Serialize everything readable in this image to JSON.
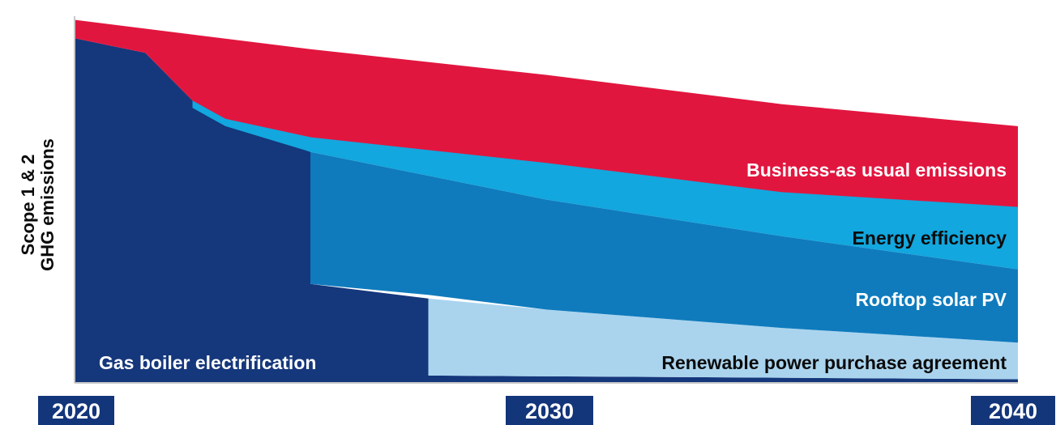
{
  "chart_data": {
    "type": "area",
    "ylabel_lines": [
      "Scope 1 & 2",
      "GHG emissions"
    ],
    "x_ticks": [
      "2020",
      "2030",
      "2040"
    ],
    "xlim": [
      2020,
      2040
    ],
    "ylim": [
      0,
      100
    ],
    "colors": {
      "axis": "#c8c8c8",
      "tick_badge": "#13357a",
      "label_dark": "#0b0b0b",
      "label_light": "#ffffff"
    },
    "series": [
      {
        "name": "Business-as usual emissions",
        "color": "#e1163f",
        "label_color": "#ffffff",
        "upper": [
          [
            2020,
            99
          ],
          [
            2025,
            91
          ],
          [
            2030,
            84
          ],
          [
            2035,
            76
          ],
          [
            2040,
            70
          ]
        ],
        "lower": [
          [
            2020,
            94
          ],
          [
            2021.5,
            90
          ],
          [
            2022.5,
            77
          ],
          [
            2023.2,
            72
          ],
          [
            2025,
            67
          ],
          [
            2030,
            60
          ],
          [
            2035,
            52
          ],
          [
            2040,
            48
          ]
        ]
      },
      {
        "name": "Energy efficiency",
        "color": "#12a7de",
        "label_color": "#0b0b0b",
        "upper": [
          [
            2022.5,
            84
          ],
          [
            2023.2,
            77
          ],
          [
            2025,
            74
          ],
          [
            2030,
            67
          ],
          [
            2035,
            57
          ],
          [
            2040,
            48
          ]
        ],
        "lower": [
          [
            2022.5,
            75
          ],
          [
            2023.2,
            70
          ],
          [
            2025,
            63
          ],
          [
            2030,
            50
          ],
          [
            2035,
            40
          ],
          [
            2040,
            31
          ]
        ]
      },
      {
        "name": "Rooftop solar PV",
        "color": "#0f7bbd",
        "label_color": "#ffffff",
        "upper": [
          [
            2025,
            63
          ],
          [
            2030,
            50
          ],
          [
            2035,
            40
          ],
          [
            2040,
            31
          ]
        ],
        "lower": [
          [
            2025,
            27
          ],
          [
            2027.5,
            24
          ],
          [
            2030,
            20
          ],
          [
            2035,
            15
          ],
          [
            2040,
            11
          ]
        ]
      },
      {
        "name": "Renewable power purchase agreement",
        "color": "#aad4ee",
        "label_color": "#0b0b0b",
        "upper": [
          [
            2027.5,
            23
          ],
          [
            2030,
            20
          ],
          [
            2035,
            15
          ],
          [
            2040,
            11
          ]
        ],
        "lower": [
          [
            2027.5,
            2
          ],
          [
            2040,
            1
          ]
        ]
      },
      {
        "name": "Gas boiler electrification",
        "color": "#15377b",
        "label_color": "#ffffff",
        "upper": [
          [
            2020,
            94
          ],
          [
            2021.5,
            90
          ],
          [
            2022.5,
            77
          ],
          [
            2023.2,
            72
          ],
          [
            2025,
            63
          ],
          [
            2025,
            27
          ],
          [
            2027.5,
            23
          ],
          [
            2027.5,
            2
          ],
          [
            2040,
            1
          ]
        ],
        "lower": [
          [
            2020,
            0
          ],
          [
            2040,
            0
          ]
        ]
      }
    ]
  }
}
